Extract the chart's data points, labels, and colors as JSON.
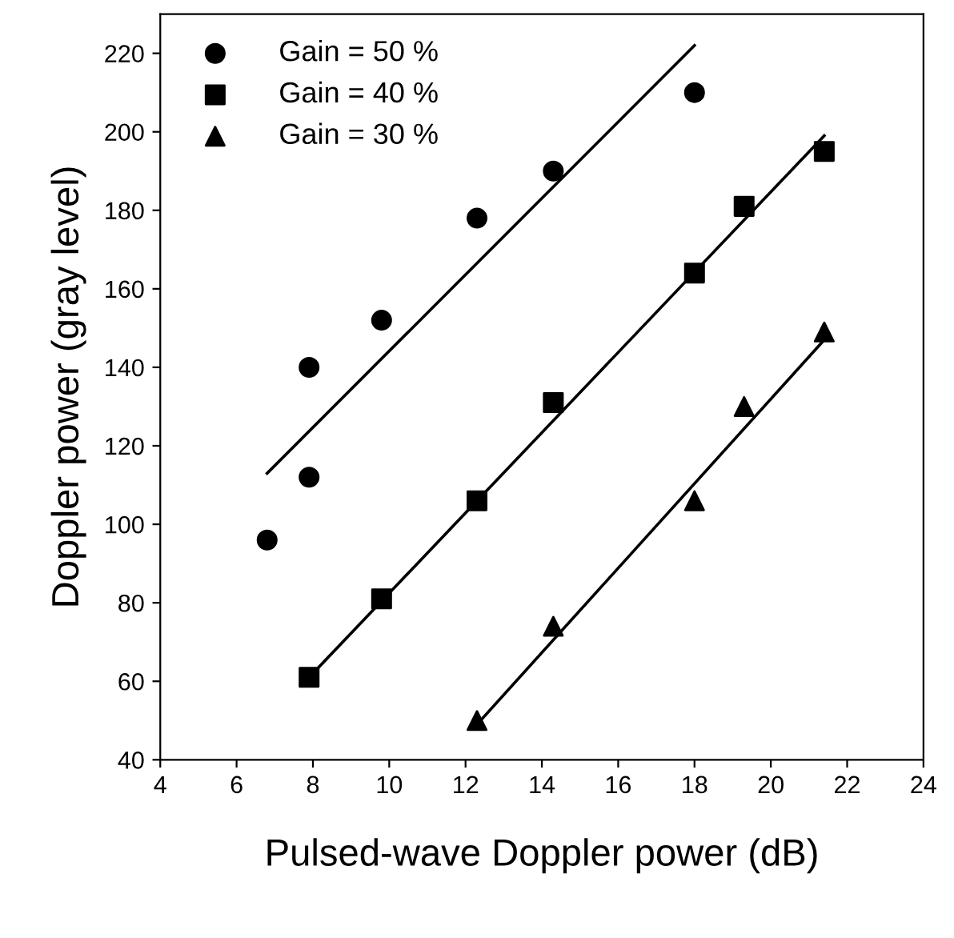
{
  "chart_data": {
    "type": "scatter",
    "xlabel": "Pulsed-wave Doppler power (dB)",
    "ylabel": "Doppler power (gray level)",
    "xlim": [
      4,
      24
    ],
    "ylim": [
      40,
      230
    ],
    "xticks": [
      4,
      6,
      8,
      10,
      12,
      14,
      16,
      18,
      20,
      22,
      24
    ],
    "yticks": [
      40,
      60,
      80,
      100,
      120,
      140,
      160,
      180,
      200,
      220
    ],
    "grid": false,
    "legend": "top left",
    "series": [
      {
        "name": "Gain = 50 %",
        "color": "#000000",
        "marker": "circle",
        "x": [
          6.8,
          7.9,
          7.9,
          9.8,
          12.3,
          14.3,
          18
        ],
        "values": [
          96,
          112,
          140,
          152,
          178,
          190,
          210
        ]
      },
      {
        "name": "Gain = 40 %",
        "color": "#000000",
        "marker": "square",
        "x": [
          7.9,
          9.8,
          12.3,
          14.3,
          18,
          19.3,
          21.4
        ],
        "values": [
          61,
          81,
          106,
          131,
          164,
          181,
          195
        ]
      },
      {
        "name": "Gain = 30 %",
        "color": "#000000",
        "marker": "triangle",
        "x": [
          12.3,
          14.3,
          18,
          19.3,
          21.4
        ],
        "values": [
          50,
          74,
          106,
          130,
          149
        ]
      },
      {
        "type": "line",
        "color": "#000000",
        "marker": "none",
        "line_style": "solid",
        "x": [
          6.8,
          18
        ],
        "values": [
          113,
          222
        ]
      },
      {
        "type": "line",
        "color": "#000000",
        "marker": "none",
        "line_style": "solid",
        "x": [
          7.9,
          21.4
        ],
        "values": [
          61,
          199
        ]
      },
      {
        "type": "line",
        "color": "#000000",
        "marker": "none",
        "line_style": "solid",
        "x": [
          12.3,
          21.4
        ],
        "values": [
          49,
          147
        ]
      }
    ]
  }
}
